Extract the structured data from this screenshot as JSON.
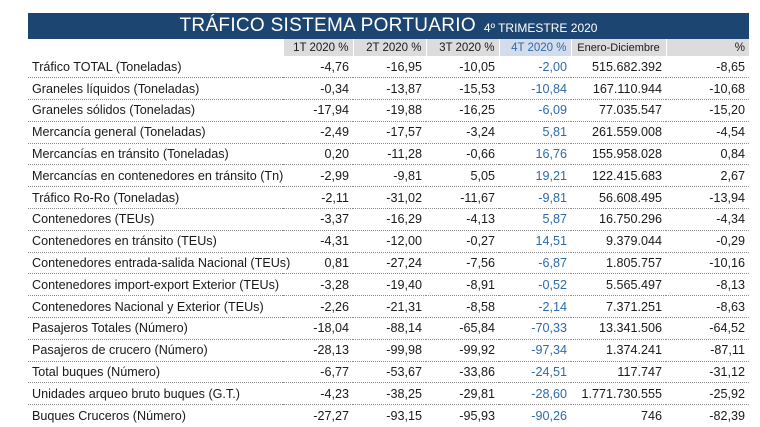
{
  "title": {
    "main": "TRÁFICO SISTEMA PORTUARIO",
    "sub": "4º TRIMESTRE 2020"
  },
  "headers": [
    "",
    "1T 2020 %",
    "2T 2020 %",
    "3T 2020 %",
    "4T 2020 %",
    "Enero-Diciembre",
    "%"
  ],
  "rows": [
    [
      "Tráfico TOTAL (Toneladas)",
      "-4,76",
      "-16,95",
      "-10,05",
      "-2,00",
      "515.682.392",
      "-8,65"
    ],
    [
      "Graneles líquidos (Toneladas)",
      "-0,34",
      "-13,87",
      "-15,53",
      "-10,84",
      "167.110.944",
      "-10,68"
    ],
    [
      "Graneles sólidos (Toneladas)",
      "-17,94",
      "-19,88",
      "-16,25",
      "-6,09",
      "77.035.547",
      "-15,20"
    ],
    [
      "Mercancía general (Toneladas)",
      "-2,49",
      "-17,57",
      "-3,24",
      "5,81",
      "261.559.008",
      "-4,54"
    ],
    [
      "Mercancías en tránsito (Toneladas)",
      "0,20",
      "-11,28",
      "-0,66",
      "16,76",
      "155.958.028",
      "0,84"
    ],
    [
      "Mercancías en contenedores en tránsito (Tn)",
      "-2,99",
      "-9,81",
      "5,05",
      "19,21",
      "122.415.683",
      "2,67"
    ],
    [
      "Tráfico Ro-Ro (Toneladas)",
      "-2,11",
      "-31,02",
      "-11,67",
      "-9,81",
      "56.608.495",
      "-13,94"
    ],
    [
      "Contenedores (TEUs)",
      "-3,37",
      "-16,29",
      "-4,13",
      "5,87",
      "16.750.296",
      "-4,34"
    ],
    [
      "Contenedores en tránsito (TEUs)",
      "-4,31",
      "-12,00",
      "-0,27",
      "14,51",
      "9.379.044",
      "-0,29"
    ],
    [
      "Contenedores entrada-salida Nacional (TEUs)",
      "0,81",
      "-27,24",
      "-7,56",
      "-6,87",
      "1.805.757",
      "-10,16"
    ],
    [
      "Contenedores import-export Exterior (TEUs)",
      "-3,28",
      "-19,40",
      "-8,91",
      "-0,52",
      "5.565.497",
      "-8,13"
    ],
    [
      "Contenedores Nacional y Exterior (TEUs)",
      "-2,26",
      "-21,31",
      "-8,58",
      "-2,14",
      "7.371.251",
      "-8,63"
    ],
    [
      "Pasajeros Totales (Número)",
      "-18,04",
      "-88,14",
      "-65,84",
      "-70,33",
      "13.341.506",
      "-64,52"
    ],
    [
      "Pasajeros de crucero (Número)",
      "-28,13",
      "-99,98",
      "-99,92",
      "-97,34",
      "1.374.241",
      "-87,11"
    ],
    [
      "Total buques (Número)",
      "-6,77",
      "-53,67",
      "-33,86",
      "-24,51",
      "117.747",
      "-31,12"
    ],
    [
      "Unidades arqueo bruto buques (G.T.)",
      "-4,23",
      "-38,25",
      "-29,81",
      "-28,60",
      "1.771.730.555",
      "-25,92"
    ],
    [
      "Buques Cruceros (Número)",
      "-27,27",
      "-93,15",
      "-95,93",
      "-90,26",
      "746",
      "-82,39"
    ]
  ],
  "colors": {
    "title_background": "#1d4571",
    "header_background": "#dcdcdc",
    "q4_header_background": "#d3dcec",
    "q4_text": "#2f6aa8"
  }
}
